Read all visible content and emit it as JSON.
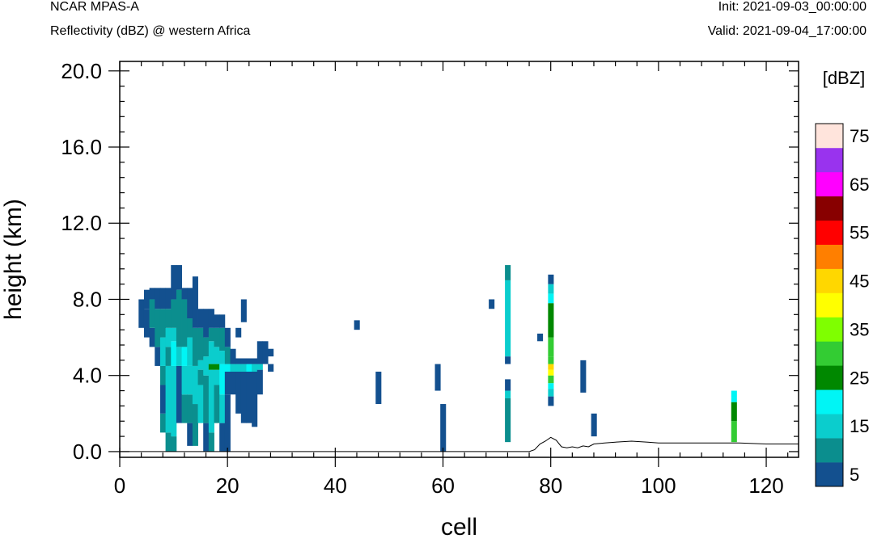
{
  "header": {
    "model": "NCAR MPAS-A",
    "field": "Reflectivity (dBZ) @ western Africa",
    "init": "Init: 2021-09-03_00:00:00",
    "valid": "Valid: 2021-09-04_17:00:00"
  },
  "chart_data": {
    "type": "heatmap",
    "title": "Reflectivity (dBZ) @ western Africa",
    "xlabel": "cell",
    "ylabel": "height (km)",
    "xlim": [
      0,
      126
    ],
    "ylim": [
      -0.3,
      20.5
    ],
    "x_ticks": [
      {
        "value": 0,
        "label": "0"
      },
      {
        "value": 20,
        "label": "20"
      },
      {
        "value": 40,
        "label": "40"
      },
      {
        "value": 60,
        "label": "60"
      },
      {
        "value": 80,
        "label": "80"
      },
      {
        "value": 100,
        "label": "100"
      },
      {
        "value": 120,
        "label": "120"
      }
    ],
    "y_ticks": [
      {
        "value": 0,
        "label": "0.0"
      },
      {
        "value": 4,
        "label": "4.0"
      },
      {
        "value": 8,
        "label": "8.0"
      },
      {
        "value": 12,
        "label": "12.0"
      },
      {
        "value": 16,
        "label": "16.0"
      },
      {
        "value": 20,
        "label": "20.0"
      }
    ],
    "colorbar": {
      "units": "[dBZ]",
      "colors": [
        "#13508f",
        "#0b8e8e",
        "#0bcdcd",
        "#00f5f5",
        "#008800",
        "#33cc33",
        "#7fff00",
        "#ffff00",
        "#ffd700",
        "#ff7f00",
        "#ff0000",
        "#880000",
        "#ff00ff",
        "#9933ee",
        "#ffe4dc"
      ],
      "labels": [
        "5",
        "15",
        "25",
        "35",
        "45",
        "55",
        "65",
        "75"
      ]
    },
    "terrain": [
      [
        0,
        0
      ],
      [
        76,
        0
      ],
      [
        77,
        0.1
      ],
      [
        78,
        0.4
      ],
      [
        79,
        0.55
      ],
      [
        80,
        0.75
      ],
      [
        81,
        0.6
      ],
      [
        82,
        0.25
      ],
      [
        83,
        0.2
      ],
      [
        84,
        0.25
      ],
      [
        85,
        0.2
      ],
      [
        86,
        0.3
      ],
      [
        87,
        0.25
      ],
      [
        88,
        0.4
      ],
      [
        90,
        0.45
      ],
      [
        92,
        0.5
      ],
      [
        95,
        0.55
      ],
      [
        98,
        0.5
      ],
      [
        100,
        0.45
      ],
      [
        105,
        0.45
      ],
      [
        110,
        0.45
      ],
      [
        115,
        0.45
      ],
      [
        120,
        0.4
      ],
      [
        126,
        0.4
      ]
    ],
    "columns": [
      {
        "cell": 4,
        "segments": [
          [
            6.5,
            8.0,
            0
          ]
        ]
      },
      {
        "cell": 5,
        "segments": [
          [
            6.0,
            7.5,
            0
          ],
          [
            7.5,
            8.5,
            0
          ]
        ]
      },
      {
        "cell": 6,
        "segments": [
          [
            5.5,
            6.5,
            0
          ],
          [
            6.5,
            8.0,
            1
          ],
          [
            8.0,
            8.6,
            0
          ]
        ]
      },
      {
        "cell": 7,
        "segments": [
          [
            4.5,
            5.5,
            0
          ],
          [
            5.5,
            7.5,
            1
          ],
          [
            7.5,
            8.6,
            0
          ]
        ]
      },
      {
        "cell": 8,
        "segments": [
          [
            1.0,
            2.0,
            1
          ],
          [
            2.0,
            3.5,
            0
          ],
          [
            3.5,
            4.5,
            1
          ],
          [
            4.5,
            6.0,
            2
          ],
          [
            6.0,
            7.5,
            1
          ],
          [
            7.5,
            8.6,
            0
          ]
        ]
      },
      {
        "cell": 9,
        "segments": [
          [
            0,
            1.0,
            1
          ],
          [
            1.0,
            4.5,
            2
          ],
          [
            4.5,
            5.5,
            1
          ],
          [
            5.5,
            6.5,
            2
          ],
          [
            6.5,
            7.5,
            1
          ],
          [
            7.5,
            8.6,
            0
          ]
        ]
      },
      {
        "cell": 10,
        "segments": [
          [
            0,
            0.8,
            1
          ],
          [
            0.8,
            4.5,
            2
          ],
          [
            4.5,
            5.8,
            3
          ],
          [
            5.8,
            6.5,
            2
          ],
          [
            6.5,
            8.0,
            1
          ],
          [
            8.0,
            9.8,
            0
          ]
        ]
      },
      {
        "cell": 11,
        "segments": [
          [
            1.5,
            4.5,
            0
          ],
          [
            4.5,
            5.5,
            2
          ],
          [
            5.5,
            8.5,
            1
          ],
          [
            8.5,
            9.8,
            0
          ]
        ]
      },
      {
        "cell": 12,
        "segments": [
          [
            1.5,
            3.0,
            1
          ],
          [
            3.0,
            4.5,
            2
          ],
          [
            4.5,
            5.5,
            3
          ],
          [
            5.5,
            8.0,
            1
          ],
          [
            8.0,
            8.6,
            0
          ]
        ]
      },
      {
        "cell": 13,
        "segments": [
          [
            0.3,
            1.5,
            0
          ],
          [
            1.5,
            3.0,
            1
          ],
          [
            3.0,
            4.5,
            2
          ],
          [
            4.5,
            6.0,
            2
          ],
          [
            6.0,
            7.0,
            1
          ],
          [
            7.0,
            8.6,
            0
          ]
        ]
      },
      {
        "cell": 14,
        "segments": [
          [
            0.3,
            2.5,
            1
          ],
          [
            2.5,
            4.5,
            2
          ],
          [
            4.5,
            6.5,
            1
          ],
          [
            6.5,
            9.2,
            0
          ]
        ]
      },
      {
        "cell": 15,
        "segments": [
          [
            1.5,
            3.5,
            2
          ],
          [
            3.5,
            4.3,
            1
          ],
          [
            4.3,
            4.8,
            2
          ],
          [
            4.8,
            6.5,
            1
          ],
          [
            6.5,
            7.5,
            0
          ]
        ]
      },
      {
        "cell": 16,
        "segments": [
          [
            0,
            1.5,
            0
          ],
          [
            1.5,
            4.0,
            1
          ],
          [
            4.0,
            5.0,
            2
          ],
          [
            5.0,
            6.0,
            1
          ],
          [
            6.0,
            7.5,
            0
          ]
        ]
      },
      {
        "cell": 17,
        "segments": [
          [
            0,
            1.0,
            1
          ],
          [
            1.0,
            4.3,
            2
          ],
          [
            4.3,
            4.6,
            4
          ],
          [
            4.6,
            5.8,
            2
          ],
          [
            5.8,
            6.5,
            1
          ],
          [
            6.5,
            7.5,
            0
          ]
        ]
      },
      {
        "cell": 18,
        "segments": [
          [
            1.5,
            3.5,
            1
          ],
          [
            3.5,
            4.3,
            2
          ],
          [
            4.3,
            4.6,
            4
          ],
          [
            4.6,
            5.5,
            2
          ],
          [
            5.5,
            6.5,
            1
          ],
          [
            6.5,
            7.2,
            0
          ]
        ]
      },
      {
        "cell": 19,
        "segments": [
          [
            0,
            1.5,
            0
          ],
          [
            1.5,
            3.0,
            2
          ],
          [
            3.0,
            4.6,
            3
          ],
          [
            4.6,
            5.3,
            2
          ],
          [
            5.3,
            6.5,
            1
          ],
          [
            6.5,
            7.2,
            0
          ]
        ]
      },
      {
        "cell": 20,
        "segments": [
          [
            0,
            3.0,
            0
          ],
          [
            3.0,
            4.2,
            0
          ],
          [
            4.2,
            4.6,
            3
          ],
          [
            4.6,
            5.5,
            1
          ],
          [
            5.5,
            6.5,
            0
          ]
        ]
      },
      {
        "cell": 21,
        "segments": [
          [
            3.0,
            4.2,
            0
          ],
          [
            4.2,
            4.6,
            2
          ],
          [
            4.6,
            5.4,
            0
          ]
        ]
      },
      {
        "cell": 22,
        "segments": [
          [
            2.0,
            4.2,
            0
          ],
          [
            4.2,
            4.6,
            2
          ],
          [
            4.6,
            4.9,
            0
          ],
          [
            6.0,
            6.5,
            0
          ]
        ]
      },
      {
        "cell": 23,
        "segments": [
          [
            1.5,
            4.2,
            0
          ],
          [
            4.2,
            4.6,
            2
          ],
          [
            4.6,
            4.9,
            0
          ],
          [
            6.8,
            8.0,
            0
          ]
        ]
      },
      {
        "cell": 24,
        "segments": [
          [
            1.5,
            4.2,
            0
          ],
          [
            4.2,
            4.6,
            3
          ],
          [
            4.6,
            4.9,
            0
          ]
        ]
      },
      {
        "cell": 25,
        "segments": [
          [
            1.3,
            4.2,
            0
          ],
          [
            4.2,
            4.6,
            2
          ],
          [
            4.6,
            4.9,
            0
          ]
        ]
      },
      {
        "cell": 26,
        "segments": [
          [
            3.0,
            4.3,
            0
          ],
          [
            4.3,
            4.6,
            2
          ],
          [
            4.6,
            5.8,
            0
          ]
        ]
      },
      {
        "cell": 27,
        "segments": [
          [
            4.6,
            5.8,
            0
          ]
        ]
      },
      {
        "cell": 28,
        "segments": [
          [
            4.2,
            4.6,
            0
          ],
          [
            5.0,
            5.4,
            0
          ]
        ]
      },
      {
        "cell": 44,
        "segments": [
          [
            6.4,
            6.9,
            0
          ]
        ]
      },
      {
        "cell": 48,
        "segments": [
          [
            2.5,
            4.2,
            0
          ]
        ]
      },
      {
        "cell": 59,
        "segments": [
          [
            3.2,
            4.6,
            0
          ]
        ]
      },
      {
        "cell": 60,
        "segments": [
          [
            0,
            2.5,
            0
          ]
        ]
      },
      {
        "cell": 69,
        "segments": [
          [
            7.5,
            8.0,
            0
          ]
        ]
      },
      {
        "cell": 72,
        "segments": [
          [
            0.5,
            2.8,
            1
          ],
          [
            2.8,
            3.2,
            2
          ],
          [
            3.2,
            3.8,
            0
          ],
          [
            4.6,
            5.0,
            0
          ],
          [
            5.0,
            9.0,
            2
          ],
          [
            9.0,
            9.8,
            1
          ]
        ]
      },
      {
        "cell": 78,
        "segments": [
          [
            5.8,
            6.2,
            0
          ]
        ]
      },
      {
        "cell": 80,
        "segments": [
          [
            2.4,
            2.9,
            0
          ],
          [
            2.9,
            3.3,
            2
          ],
          [
            3.3,
            3.6,
            3
          ],
          [
            3.6,
            4.0,
            5
          ],
          [
            4.0,
            4.3,
            7
          ],
          [
            4.3,
            4.6,
            8
          ],
          [
            4.6,
            5.0,
            5
          ],
          [
            5.0,
            6.0,
            5
          ],
          [
            6.0,
            7.8,
            4
          ],
          [
            7.8,
            8.3,
            3
          ],
          [
            8.3,
            8.8,
            2
          ],
          [
            8.8,
            9.3,
            0
          ]
        ]
      },
      {
        "cell": 86,
        "segments": [
          [
            3.1,
            4.8,
            0
          ]
        ]
      },
      {
        "cell": 88,
        "segments": [
          [
            0.8,
            2.0,
            0
          ]
        ]
      },
      {
        "cell": 114,
        "segments": [
          [
            0.5,
            1.6,
            5
          ],
          [
            1.6,
            2.6,
            4
          ],
          [
            2.6,
            2.8,
            3
          ],
          [
            2.8,
            3.2,
            3
          ]
        ]
      }
    ]
  }
}
